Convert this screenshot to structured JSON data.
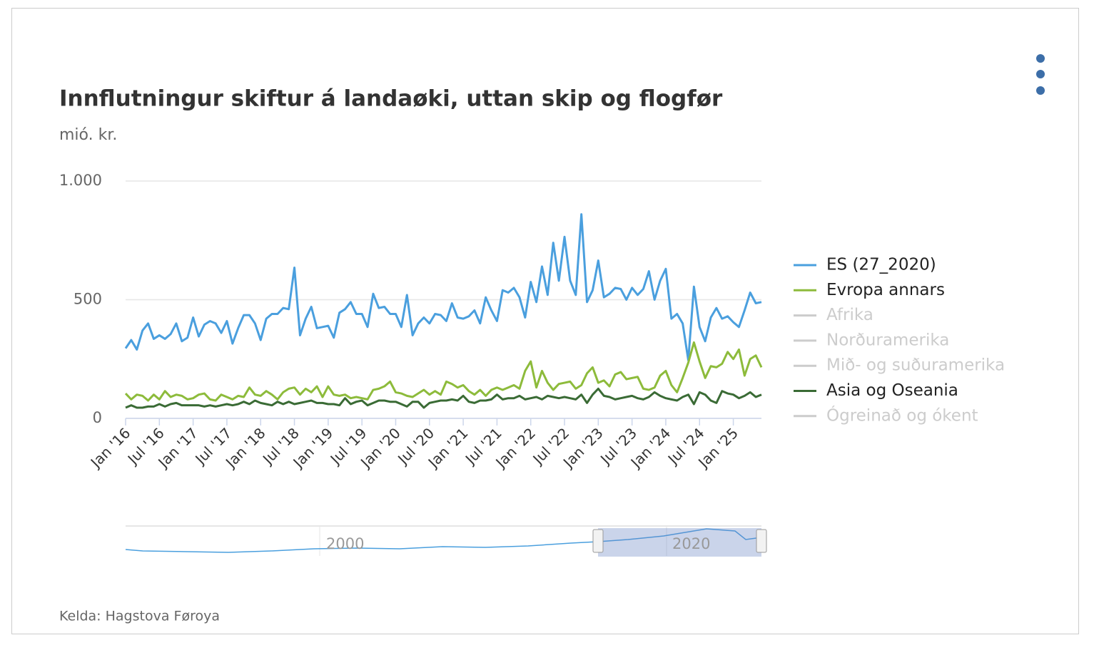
{
  "chart_data": {
    "type": "line",
    "title": "Innflutningur skiftur á landaøki, uttan skip og flogfør",
    "subtitle": "mió. kr.",
    "source": "Kelda: Hagstova Føroya",
    "categories": [
      "Jan '16",
      null,
      null,
      null,
      null,
      null,
      "Jul '16",
      null,
      null,
      null,
      null,
      null,
      "Jan '17",
      null,
      null,
      null,
      null,
      null,
      "Jul '17",
      null,
      null,
      null,
      null,
      null,
      "Jan '18",
      null,
      null,
      null,
      null,
      null,
      "Jul '18",
      null,
      null,
      null,
      null,
      null,
      "Jan '19",
      null,
      null,
      null,
      null,
      null,
      "Jul '19",
      null,
      null,
      null,
      null,
      null,
      "Jan '20",
      null,
      null,
      null,
      null,
      null,
      "Jul '20",
      null,
      null,
      null,
      null,
      null,
      "Jan '21",
      null,
      null,
      null,
      null,
      null,
      "Jul '21",
      null,
      null,
      null,
      null,
      null,
      "Jan '22",
      null,
      null,
      null,
      null,
      null,
      "Jul '22",
      null,
      null,
      null,
      null,
      null,
      "Jan '23",
      null,
      null,
      null,
      null,
      null,
      "Jul '23",
      null,
      null,
      null,
      null,
      null,
      "Jan '24",
      null,
      null,
      null,
      null,
      null,
      "Jul '24",
      null,
      null,
      null,
      null,
      null,
      "Jan '25",
      null,
      null,
      null,
      null,
      null
    ],
    "series": [
      {
        "name": "ES (27_2020)",
        "color": "#4a9fde",
        "visible": true,
        "values": [
          295,
          330,
          290,
          370,
          400,
          335,
          350,
          335,
          355,
          400,
          325,
          340,
          425,
          345,
          395,
          410,
          400,
          360,
          410,
          315,
          380,
          435,
          435,
          400,
          330,
          420,
          440,
          440,
          465,
          460,
          635,
          350,
          420,
          470,
          380,
          385,
          390,
          340,
          445,
          460,
          490,
          440,
          440,
          385,
          525,
          465,
          470,
          440,
          440,
          385,
          520,
          350,
          400,
          425,
          400,
          440,
          435,
          410,
          485,
          425,
          420,
          430,
          455,
          400,
          510,
          455,
          410,
          540,
          530,
          550,
          510,
          425,
          575,
          490,
          640,
          520,
          740,
          580,
          765,
          580,
          520,
          860,
          490,
          540,
          665,
          510,
          525,
          550,
          545,
          500,
          550,
          520,
          545,
          620,
          500,
          580,
          630,
          420,
          440,
          400,
          245,
          555,
          385,
          325,
          425,
          465,
          420,
          430,
          405,
          385,
          455,
          530,
          485,
          490
        ]
      },
      {
        "name": "Evropa annars",
        "color": "#8dbb3b",
        "visible": true,
        "values": [
          105,
          80,
          100,
          95,
          75,
          100,
          80,
          115,
          90,
          100,
          95,
          80,
          85,
          100,
          105,
          80,
          75,
          100,
          90,
          80,
          95,
          90,
          130,
          100,
          95,
          115,
          100,
          80,
          110,
          125,
          130,
          100,
          125,
          110,
          135,
          90,
          135,
          100,
          95,
          100,
          85,
          90,
          85,
          80,
          120,
          125,
          135,
          155,
          110,
          105,
          95,
          90,
          105,
          120,
          100,
          115,
          100,
          155,
          145,
          130,
          140,
          115,
          100,
          120,
          95,
          120,
          130,
          120,
          130,
          140,
          125,
          200,
          240,
          130,
          200,
          150,
          120,
          145,
          150,
          155,
          125,
          140,
          190,
          215,
          150,
          160,
          135,
          185,
          195,
          165,
          170,
          175,
          125,
          120,
          130,
          180,
          200,
          140,
          110,
          170,
          235,
          320,
          240,
          170,
          220,
          215,
          230,
          280,
          250,
          290,
          180,
          250,
          265,
          215
        ]
      },
      {
        "name": "Afrika",
        "color": "#cccccc",
        "visible": false
      },
      {
        "name": "Norðuramerika",
        "color": "#cccccc",
        "visible": false
      },
      {
        "name": "Mið- og suðuramerika",
        "color": "#cccccc",
        "visible": false
      },
      {
        "name": "Asia og Oseania",
        "color": "#3a6b35",
        "visible": true,
        "values": [
          45,
          55,
          45,
          45,
          50,
          50,
          60,
          50,
          60,
          65,
          55,
          55,
          55,
          55,
          50,
          55,
          50,
          55,
          60,
          55,
          60,
          70,
          60,
          75,
          65,
          60,
          55,
          70,
          60,
          70,
          60,
          65,
          70,
          75,
          65,
          65,
          60,
          60,
          55,
          85,
          60,
          70,
          75,
          55,
          65,
          75,
          75,
          70,
          70,
          60,
          50,
          70,
          70,
          45,
          65,
          70,
          75,
          75,
          80,
          75,
          95,
          70,
          65,
          75,
          75,
          80,
          100,
          80,
          85,
          85,
          95,
          80,
          85,
          90,
          80,
          95,
          90,
          85,
          90,
          85,
          80,
          100,
          65,
          100,
          125,
          95,
          90,
          80,
          85,
          90,
          95,
          85,
          80,
          90,
          110,
          95,
          85,
          80,
          75,
          90,
          100,
          60,
          110,
          100,
          75,
          65,
          115,
          105,
          100,
          85,
          95,
          110,
          90,
          100
        ]
      },
      {
        "name": "Ógreinað og ókent",
        "color": "#cccccc",
        "visible": false
      }
    ],
    "ylim": [
      0,
      1000
    ],
    "yticks": [
      0,
      {
        "value": 500,
        "label": "500"
      },
      {
        "value": 1000,
        "label": "1.000"
      }
    ],
    "grid": true,
    "legend": "right",
    "navigator_labels": [
      "2000",
      "2020"
    ]
  }
}
